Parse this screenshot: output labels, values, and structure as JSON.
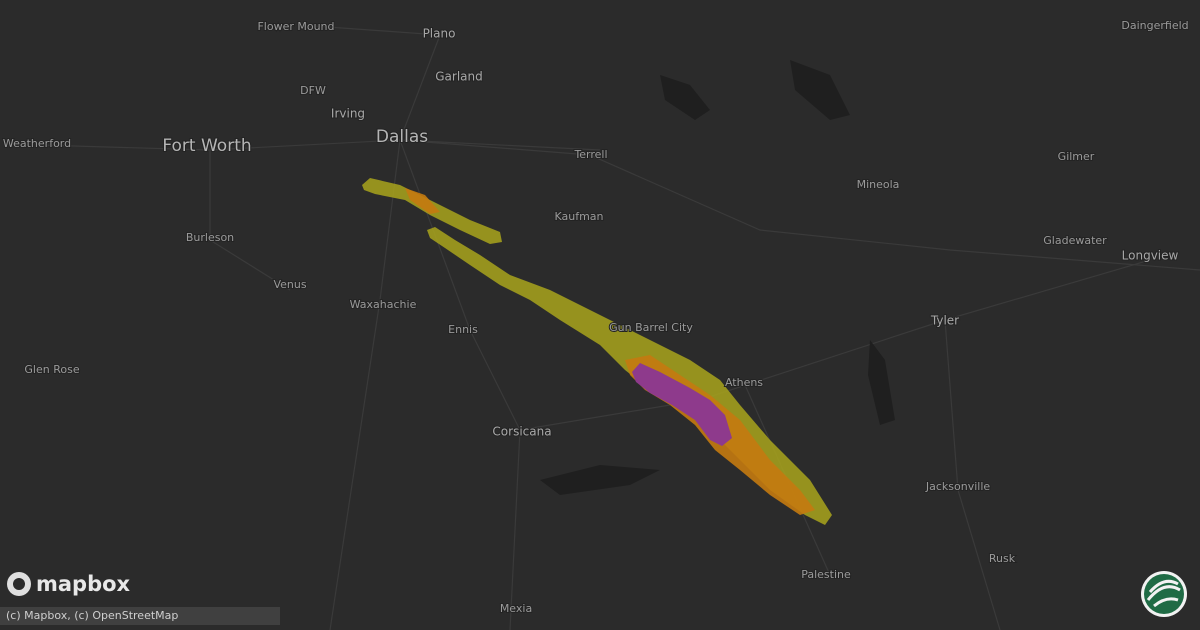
{
  "map": {
    "places": [
      "Flower Mound",
      "Plano",
      "Garland",
      "DFW",
      "Irving",
      "Dallas",
      "Fort Worth",
      "Weatherford",
      "Terrell",
      "Mineola",
      "Gilmer",
      "Daingerfield",
      "Kaufman",
      "Burleson",
      "Gladewater",
      "Longview",
      "Venus",
      "Waxahachie",
      "Ennis",
      "Gun Barrel City",
      "Tyler",
      "Glen Rose",
      "Athens",
      "Corsicana",
      "Jacksonville",
      "Rusk",
      "Palestine",
      "Mexia"
    ],
    "logo": "mapbox",
    "attribution": "(c) Mapbox, (c) OpenStreetMap"
  }
}
